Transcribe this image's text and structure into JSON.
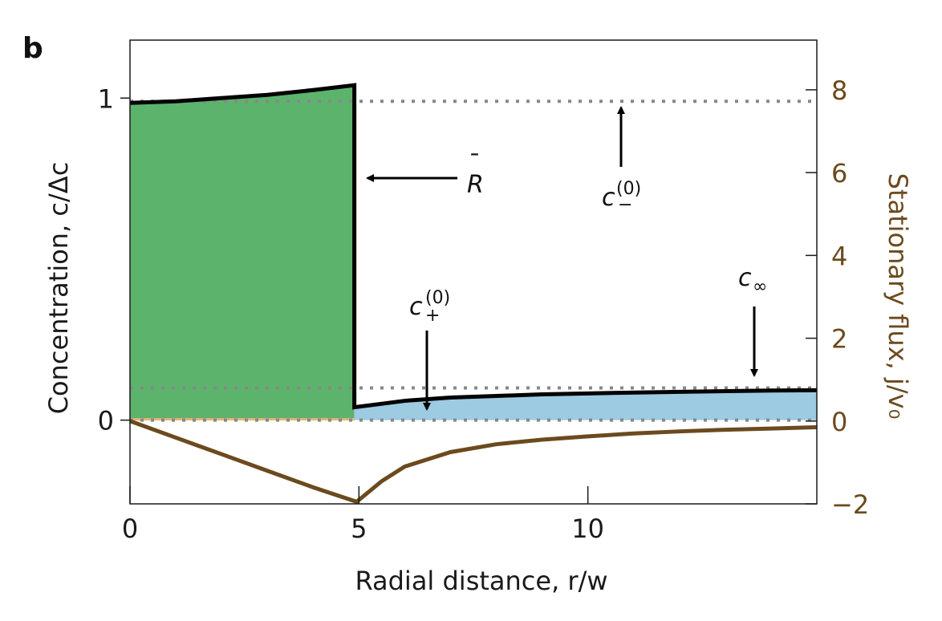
{
  "panel_label": "b",
  "colors": {
    "green_fill": "#5cb36c",
    "blue_fill": "#9ccbe2",
    "flux_line": "#6b4a1e",
    "dotted": "#888888",
    "concentration_line": "#000000"
  },
  "chart_data": {
    "type": "line",
    "xlabel": "Radial distance, r/w",
    "ylabel": "Concentration, c/Δc",
    "ylabel_right": "Stationary flux, j/v₀",
    "xlim": [
      0,
      15
    ],
    "ylim": [
      -0.26,
      1.18
    ],
    "ylim_right": [
      -2,
      9.2
    ],
    "x_ticks": [
      "0",
      "5",
      "10"
    ],
    "x_tick_values": [
      0,
      5,
      10
    ],
    "y_ticks": [
      "0",
      "1"
    ],
    "y_tick_values": [
      0,
      1
    ],
    "y_ticks_right": [
      "−2",
      "0",
      "2",
      "4",
      "6",
      "8"
    ],
    "y_tick_values_right": [
      -2,
      0,
      2,
      4,
      6,
      8
    ],
    "series": [
      {
        "type": "area",
        "x": [
          0,
          1,
          2,
          3,
          4,
          4.9
        ],
        "y": [
          0.985,
          0.99,
          1.0,
          1.01,
          1.025,
          1.04
        ]
      },
      {
        "type": "area",
        "x": [
          4.9,
          6,
          7,
          8,
          9,
          10,
          12,
          14,
          15
        ],
        "y": [
          0.04,
          0.06,
          0.07,
          0.075,
          0.08,
          0.083,
          0.088,
          0.092,
          0.093
        ]
      },
      {
        "type": "line",
        "x": [
          0,
          1,
          2,
          3,
          4,
          4.9,
          4.9,
          6,
          7,
          8,
          9,
          10,
          12,
          14,
          15
        ],
        "y": [
          0.985,
          0.99,
          1.0,
          1.01,
          1.025,
          1.04,
          0.04,
          0.06,
          0.07,
          0.075,
          0.08,
          0.083,
          0.088,
          0.092,
          0.093
        ]
      },
      {
        "type": "line",
        "axis": "right",
        "x": [
          0,
          1,
          2,
          3,
          4,
          4.95,
          5.5,
          6,
          7,
          8,
          9,
          10,
          11,
          12,
          13,
          14,
          15
        ],
        "y": [
          0,
          -0.4,
          -0.8,
          -1.2,
          -1.6,
          -1.95,
          -1.45,
          -1.1,
          -0.75,
          -0.56,
          -0.45,
          -0.37,
          -0.3,
          -0.25,
          -0.21,
          -0.18,
          -0.15
        ]
      }
    ],
    "reference_lines": [
      {
        "y": 0.99
      },
      {
        "y": 0.1
      },
      {
        "y": 0.0
      }
    ],
    "annotations": [
      {
        "text": "R̄",
        "target": [
          4.9,
          0.75
        ]
      },
      {
        "text": "c₋⁽⁰⁾",
        "target": [
          10.7,
          0.99
        ]
      },
      {
        "text": "c₊⁽⁰⁾",
        "target": [
          6.5,
          0.02
        ]
      },
      {
        "text": "c∞",
        "target": [
          13.6,
          0.12
        ]
      }
    ]
  },
  "annotations_text": {
    "R": "R",
    "Rbar": "¯",
    "cminus_base": "c",
    "cminus_sub": "−",
    "cminus_sup": "(0)",
    "cplus_base": "c",
    "cplus_sub": "+",
    "cplus_sup": "(0)",
    "cinf_base": "c",
    "cinf_sub": "∞"
  }
}
